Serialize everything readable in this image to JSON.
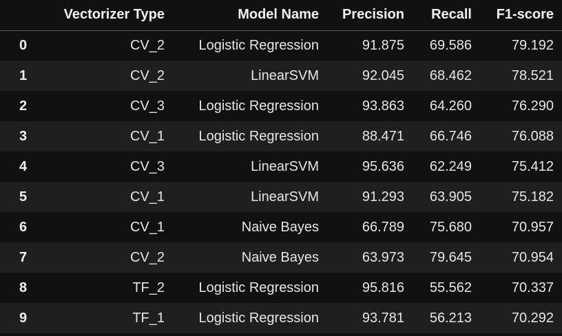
{
  "table": {
    "headers": [
      "",
      "Vectorizer Type",
      "Model Name",
      "Precision",
      "Recall",
      "F1-score"
    ],
    "rows": [
      {
        "index": "0",
        "vectorizer": "CV_2",
        "model": "Logistic Regression",
        "precision": "91.875",
        "recall": "69.586",
        "f1": "79.192"
      },
      {
        "index": "1",
        "vectorizer": "CV_2",
        "model": "LinearSVM",
        "precision": "92.045",
        "recall": "68.462",
        "f1": "78.521"
      },
      {
        "index": "2",
        "vectorizer": "CV_3",
        "model": "Logistic Regression",
        "precision": "93.863",
        "recall": "64.260",
        "f1": "76.290"
      },
      {
        "index": "3",
        "vectorizer": "CV_1",
        "model": "Logistic Regression",
        "precision": "88.471",
        "recall": "66.746",
        "f1": "76.088"
      },
      {
        "index": "4",
        "vectorizer": "CV_3",
        "model": "LinearSVM",
        "precision": "95.636",
        "recall": "62.249",
        "f1": "75.412"
      },
      {
        "index": "5",
        "vectorizer": "CV_1",
        "model": "LinearSVM",
        "precision": "91.293",
        "recall": "63.905",
        "f1": "75.182"
      },
      {
        "index": "6",
        "vectorizer": "CV_1",
        "model": "Naive Bayes",
        "precision": "66.789",
        "recall": "75.680",
        "f1": "70.957"
      },
      {
        "index": "7",
        "vectorizer": "CV_2",
        "model": "Naive Bayes",
        "precision": "63.973",
        "recall": "79.645",
        "f1": "70.954"
      },
      {
        "index": "8",
        "vectorizer": "TF_2",
        "model": "Logistic Regression",
        "precision": "95.816",
        "recall": "55.562",
        "f1": "70.337"
      },
      {
        "index": "9",
        "vectorizer": "TF_1",
        "model": "Logistic Regression",
        "precision": "93.781",
        "recall": "56.213",
        "f1": "70.292"
      }
    ]
  },
  "colors": {
    "background": "#111111",
    "row_alt": "#1f1f1f",
    "text": "#e6e6e6",
    "header_rule": "#5a5a5a"
  }
}
